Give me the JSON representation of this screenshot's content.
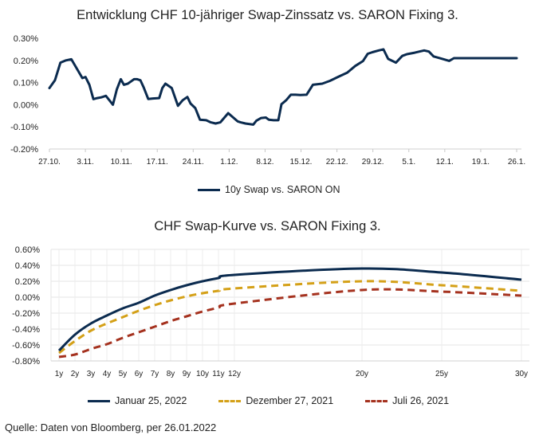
{
  "chart_data": [
    {
      "type": "line",
      "title": "Entwicklung CHF 10-jähriger Swap-Zinssatz vs. SARON Fixing 3.",
      "xlabel": "",
      "ylabel": "",
      "ylim": [
        -0.2,
        0.3
      ],
      "yticks": [
        "0.30%",
        "0.20%",
        "0.10%",
        "0.00%",
        "-0.10%",
        "-0.20%"
      ],
      "ytick_values": [
        0.3,
        0.2,
        0.1,
        0.0,
        -0.1,
        -0.2
      ],
      "categories": [
        "27.10.",
        "3.11.",
        "10.11.",
        "17.11.",
        "24.11.",
        "1.12.",
        "8.12.",
        "15.12.",
        "22.12.",
        "29.12.",
        "5.1.",
        "12.1.",
        "19.1.",
        "26.1."
      ],
      "grid": false,
      "legend": "bottom",
      "series": [
        {
          "name": "10y Swap vs. SARON ON",
          "color": "#0b2b4f",
          "x": [
            0,
            0.35,
            0.7,
            1.05,
            1.4,
            2.1,
            2.3,
            2.55,
            2.8,
            3.05,
            3.3,
            3.6,
            4.05,
            4.3,
            4.55,
            4.75,
            5,
            5.2,
            5.4,
            5.6,
            5.8,
            6,
            6.3,
            6.6,
            7,
            7.2,
            7.4,
            7.8,
            8.2,
            8.5,
            8.8,
            9.0,
            9.3,
            9.6,
            10.0,
            10.3,
            10.6,
            10.9,
            11.4,
            12.0,
            12.2,
            12.5,
            13.0,
            13.2,
            13.5,
            13.8,
            14.0,
            14.3,
            14.6,
            14.8,
            15.1,
            15.4,
            15.7,
            16.0,
            16.4,
            16.8,
            17.4,
            17.9,
            18.4,
            19.0,
            19.5,
            20.0,
            20.3,
            20.6,
            21.0,
            21.3,
            21.6,
            22.1,
            22.5,
            22.8,
            23.3,
            23.6,
            23.9,
            24.2,
            24.5,
            25.0,
            25.5,
            25.8,
            26.2,
            26.5,
            26.7,
            27.1,
            27.4,
            27.7,
            28.1,
            28.5,
            29.0,
            29.4,
            29.6,
            29.8
          ],
          "values": [
            0.075,
            0.11,
            0.19,
            0.2,
            0.205,
            0.12,
            0.125,
            0.09,
            0.025,
            0.03,
            0.033,
            0.04,
            0.0,
            0.07,
            0.115,
            0.09,
            0.095,
            0.105,
            0.115,
            0.115,
            0.11,
            0.08,
            0.026,
            0.028,
            0.03,
            0.075,
            0.095,
            0.075,
            -0.005,
            0.02,
            0.035,
            0.005,
            -0.015,
            -0.068,
            -0.07,
            -0.08,
            -0.085,
            -0.08,
            -0.038,
            -0.075,
            -0.08,
            -0.085,
            -0.09,
            -0.072,
            -0.06,
            -0.058,
            -0.068,
            -0.07,
            -0.07,
            0.002,
            0.02,
            0.045,
            0.045,
            0.044,
            0.045,
            0.09,
            0.095,
            0.108,
            0.125,
            0.145,
            0.175,
            0.197,
            0.23,
            0.237,
            0.245,
            0.25,
            0.207,
            0.19,
            0.22,
            0.228,
            0.235,
            0.24,
            0.245,
            0.24,
            0.218,
            0.208,
            0.198,
            0.21,
            0.21,
            0.21,
            0.21,
            0.21,
            0.21,
            0.21,
            0.21,
            0.21,
            0.21,
            0.21,
            0.21,
            0.21
          ]
        }
      ]
    },
    {
      "type": "line",
      "title": "CHF Swap-Kurve vs. SARON Fixing 3.",
      "xlabel": "",
      "ylabel": "",
      "ylim": [
        -0.8,
        0.6
      ],
      "yticks": [
        "0.60%",
        "0.40%",
        "0.20%",
        "0.00%",
        "-0.20%",
        "-0.40%",
        "-0.60%",
        "-0.80%"
      ],
      "ytick_values": [
        0.6,
        0.4,
        0.2,
        0.0,
        -0.2,
        -0.4,
        -0.6,
        -0.8
      ],
      "categories": [
        "1y",
        "2y",
        "3y",
        "4y",
        "5y",
        "6y",
        "7y",
        "8y",
        "9y",
        "10y",
        "11y",
        "12y",
        "20y",
        "25y",
        "30y"
      ],
      "grid": true,
      "legend": "bottom",
      "series": [
        {
          "name": "Januar 25, 2022",
          "color": "#0b2b4f",
          "dash": "solid",
          "values": [
            -0.67,
            -0.47,
            -0.33,
            -0.23,
            -0.14,
            -0.07,
            0.02,
            0.09,
            0.15,
            0.2,
            0.24,
            0.28,
            0.36,
            0.31,
            0.22
          ]
        },
        {
          "name": "Dezember 27, 2021",
          "color": "#d4a017",
          "dash": "dashed",
          "values": [
            -0.7,
            -0.55,
            -0.42,
            -0.33,
            -0.25,
            -0.17,
            -0.1,
            -0.04,
            0.01,
            0.05,
            0.08,
            0.11,
            0.2,
            0.15,
            0.08
          ]
        },
        {
          "name": "Juli 26, 2021",
          "color": "#a5321f",
          "dash": "dashed",
          "values": [
            -0.75,
            -0.72,
            -0.65,
            -0.59,
            -0.51,
            -0.44,
            -0.37,
            -0.3,
            -0.24,
            -0.18,
            -0.13,
            -0.08,
            0.09,
            0.07,
            0.02
          ]
        }
      ]
    }
  ],
  "legend1": {
    "label": "10y Swap vs. SARON ON"
  },
  "legend2": [
    {
      "label": "Januar 25, 2022"
    },
    {
      "label": "Dezember 27, 2021"
    },
    {
      "label": "Juli 26, 2021"
    }
  ],
  "footer": {
    "source": "Quelle: Daten von Bloomberg, per 26.01.2022"
  }
}
